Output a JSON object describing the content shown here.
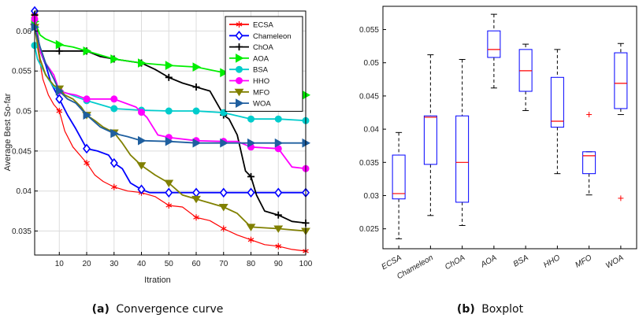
{
  "chart_data": [
    {
      "type": "line",
      "caption_tag": "(a)",
      "caption_text": "Convergence curve",
      "xlabel": "Itration",
      "ylabel": "Average Best So-far",
      "xlim": [
        1,
        100
      ],
      "ylim": [
        0.032,
        0.0625
      ],
      "xticks": [
        10,
        20,
        30,
        40,
        50,
        60,
        70,
        80,
        90,
        100
      ],
      "yticks": [
        0.035,
        0.04,
        0.045,
        0.05,
        0.055,
        0.06
      ],
      "grid": true,
      "legend_position": "top-right",
      "series": [
        {
          "name": "ECSA",
          "color": "#ff0000",
          "marker": "asterisk",
          "x": [
            1,
            2,
            3,
            4,
            6,
            8,
            10,
            12,
            15,
            18,
            20,
            23,
            26,
            30,
            35,
            40,
            45,
            50,
            55,
            60,
            65,
            70,
            75,
            80,
            85,
            90,
            95,
            100
          ],
          "y": [
            0.062,
            0.058,
            0.056,
            0.054,
            0.052,
            0.0508,
            0.05,
            0.0475,
            0.0455,
            0.0443,
            0.0435,
            0.042,
            0.0412,
            0.0405,
            0.04,
            0.0398,
            0.0393,
            0.0382,
            0.038,
            0.0367,
            0.0363,
            0.0353,
            0.0345,
            0.0339,
            0.0333,
            0.0331,
            0.0327,
            0.0325
          ]
        },
        {
          "name": "Chameleon",
          "color": "#0000ff",
          "marker": "diamond",
          "x": [
            1,
            2,
            3,
            5,
            7,
            10,
            13,
            16,
            20,
            24,
            28,
            30,
            33,
            36,
            40,
            43,
            50,
            60,
            70,
            80,
            90,
            100
          ],
          "y": [
            0.0625,
            0.0595,
            0.0575,
            0.0558,
            0.0535,
            0.0515,
            0.0495,
            0.0478,
            0.0453,
            0.045,
            0.0445,
            0.0435,
            0.0428,
            0.041,
            0.0402,
            0.0398,
            0.0398,
            0.0398,
            0.0398,
            0.0398,
            0.0398,
            0.0398
          ]
        },
        {
          "name": "ChOA",
          "color": "#000000",
          "marker": "plus",
          "x": [
            1,
            3,
            5,
            10,
            20,
            25,
            30,
            40,
            45,
            50,
            55,
            60,
            65,
            70,
            72,
            75,
            78,
            80,
            82,
            85,
            90,
            95,
            100
          ],
          "y": [
            0.062,
            0.0575,
            0.0575,
            0.0575,
            0.0575,
            0.0568,
            0.0565,
            0.056,
            0.0552,
            0.0542,
            0.0535,
            0.053,
            0.0525,
            0.0495,
            0.049,
            0.047,
            0.0425,
            0.0418,
            0.0395,
            0.0375,
            0.037,
            0.0362,
            0.036
          ]
        },
        {
          "name": "AOA",
          "color": "#00ee00",
          "marker": "triangle-right",
          "x": [
            1,
            3,
            5,
            10,
            15,
            20,
            30,
            40,
            50,
            60,
            70,
            75,
            80,
            85,
            90,
            95,
            100
          ],
          "y": [
            0.0612,
            0.0595,
            0.059,
            0.0583,
            0.058,
            0.0575,
            0.0565,
            0.056,
            0.0557,
            0.0555,
            0.0548,
            0.0545,
            0.054,
            0.054,
            0.0528,
            0.052,
            0.052
          ]
        },
        {
          "name": "BSA",
          "color": "#00cccc",
          "marker": "circle",
          "x": [
            1,
            2,
            4,
            6,
            8,
            10,
            13,
            16,
            20,
            25,
            30,
            40,
            50,
            60,
            70,
            80,
            90,
            100
          ],
          "y": [
            0.0582,
            0.0565,
            0.0552,
            0.054,
            0.053,
            0.0525,
            0.0522,
            0.0518,
            0.0513,
            0.0508,
            0.0503,
            0.0501,
            0.05,
            0.05,
            0.0498,
            0.049,
            0.049,
            0.0488
          ]
        },
        {
          "name": "HHO",
          "color": "#ff00ff",
          "marker": "circle",
          "x": [
            1,
            3,
            5,
            8,
            10,
            13,
            16,
            20,
            30,
            38,
            42,
            46,
            50,
            60,
            70,
            75,
            80,
            90,
            95,
            100
          ],
          "y": [
            0.0615,
            0.0575,
            0.056,
            0.0545,
            0.0525,
            0.0522,
            0.052,
            0.0515,
            0.0515,
            0.0505,
            0.0492,
            0.047,
            0.0467,
            0.0463,
            0.0462,
            0.0462,
            0.0455,
            0.0453,
            0.043,
            0.0428
          ]
        },
        {
          "name": "MFO",
          "color": "#808000",
          "marker": "triangle-down",
          "x": [
            1,
            3,
            5,
            8,
            10,
            12,
            15,
            18,
            20,
            23,
            26,
            30,
            33,
            36,
            40,
            45,
            50,
            55,
            60,
            65,
            70,
            75,
            80,
            90,
            100
          ],
          "y": [
            0.0605,
            0.0565,
            0.0545,
            0.0532,
            0.0528,
            0.052,
            0.0515,
            0.0505,
            0.0495,
            0.0488,
            0.048,
            0.0473,
            0.046,
            0.0445,
            0.0432,
            0.042,
            0.041,
            0.0395,
            0.039,
            0.0385,
            0.038,
            0.0372,
            0.0355,
            0.0353,
            0.035
          ]
        },
        {
          "name": "WOA",
          "color": "#1f5f9f",
          "marker": "triangle-right",
          "x": [
            1,
            3,
            5,
            8,
            10,
            13,
            16,
            20,
            25,
            30,
            35,
            40,
            50,
            60,
            70,
            80,
            90,
            100
          ],
          "y": [
            0.0605,
            0.058,
            0.056,
            0.054,
            0.0525,
            0.0515,
            0.051,
            0.0495,
            0.048,
            0.0472,
            0.0468,
            0.0463,
            0.0462,
            0.046,
            0.046,
            0.046,
            0.046,
            0.046
          ]
        }
      ]
    },
    {
      "type": "boxplot",
      "caption_tag": "(b)",
      "caption_text": "Boxplot",
      "ylim": [
        0.022,
        0.0585
      ],
      "yticks": [
        0.025,
        0.03,
        0.035,
        0.04,
        0.045,
        0.05,
        0.055
      ],
      "grid": false,
      "box_color": "#0000ff",
      "median_color": "#ff0000",
      "outlier_color": "#ff0000",
      "categories": [
        "ECSA",
        "Chameleon",
        "ChOA",
        "AOA",
        "BSA",
        "HHO",
        "MFO",
        "WOA"
      ],
      "boxes": [
        {
          "min": 0.0235,
          "q1": 0.0295,
          "median": 0.0303,
          "q3": 0.0361,
          "max": 0.0395,
          "outliers": []
        },
        {
          "min": 0.027,
          "q1": 0.0347,
          "median": 0.0418,
          "q3": 0.042,
          "max": 0.0512,
          "outliers": []
        },
        {
          "min": 0.0255,
          "q1": 0.029,
          "median": 0.035,
          "q3": 0.042,
          "max": 0.0505,
          "outliers": []
        },
        {
          "min": 0.0462,
          "q1": 0.0508,
          "median": 0.052,
          "q3": 0.0548,
          "max": 0.0573,
          "outliers": []
        },
        {
          "min": 0.0428,
          "q1": 0.0457,
          "median": 0.0488,
          "q3": 0.052,
          "max": 0.0528,
          "outliers": []
        },
        {
          "min": 0.0333,
          "q1": 0.0403,
          "median": 0.0412,
          "q3": 0.0478,
          "max": 0.052,
          "outliers": []
        },
        {
          "min": 0.0301,
          "q1": 0.0333,
          "median": 0.036,
          "q3": 0.0366,
          "max": 0.0366,
          "outliers": [
            0.0422
          ]
        },
        {
          "min": 0.0422,
          "q1": 0.0431,
          "median": 0.0469,
          "q3": 0.0515,
          "max": 0.0529,
          "outliers": [
            0.0296
          ]
        }
      ]
    }
  ]
}
